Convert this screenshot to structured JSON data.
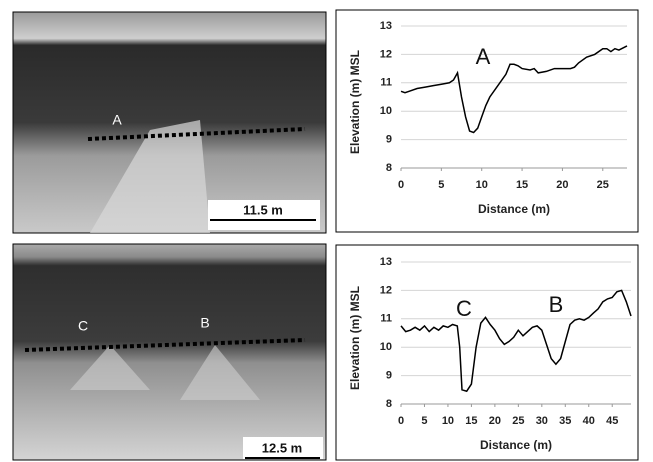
{
  "photos": [
    {
      "labels": [
        "A"
      ],
      "scale_bar": "11.5 m"
    },
    {
      "labels": [
        "C",
        "B"
      ],
      "scale_bar": "12.5 m"
    }
  ],
  "chart_data": [
    {
      "type": "line",
      "x_label": "Distance (m)",
      "y_label": "Elevation (m) MSL",
      "annotations": [
        "A"
      ],
      "color": "#000000",
      "grid": true,
      "x": [
        0,
        0.5,
        1,
        2,
        3,
        4,
        5,
        6,
        6.5,
        7,
        7.5,
        8,
        8.5,
        9,
        9.5,
        10,
        10.5,
        11,
        12,
        13,
        13.5,
        14,
        14.5,
        15,
        16,
        16.5,
        17,
        18,
        19,
        20,
        21,
        21.5,
        22,
        23,
        24,
        25,
        25.5,
        26,
        26.5,
        27,
        28
      ],
      "values": [
        10.7,
        10.65,
        10.7,
        10.8,
        10.85,
        10.9,
        10.95,
        11.0,
        11.1,
        11.35,
        10.5,
        9.8,
        9.3,
        9.25,
        9.4,
        9.8,
        10.2,
        10.5,
        10.9,
        11.3,
        11.65,
        11.65,
        11.6,
        11.5,
        11.45,
        11.5,
        11.35,
        11.4,
        11.5,
        11.5,
        11.5,
        11.55,
        11.7,
        11.9,
        12.0,
        12.2,
        12.2,
        12.1,
        12.2,
        12.15,
        12.3
      ],
      "xlim": [
        0,
        28
      ],
      "xticks": [
        0,
        5,
        10,
        15,
        20,
        25
      ],
      "ylim": [
        8,
        13
      ],
      "yticks": [
        8,
        9,
        10,
        11,
        12,
        13
      ]
    },
    {
      "type": "line",
      "x_label": "Distance (m)",
      "y_label": "Elevation (m) MSL",
      "annotations": [
        "C",
        "B"
      ],
      "color": "#000000",
      "grid": true,
      "x": [
        0,
        1,
        2,
        3,
        4,
        5,
        6,
        7,
        8,
        9,
        10,
        11,
        12,
        12.5,
        13,
        14,
        15,
        16,
        17,
        18,
        19,
        20,
        21,
        22,
        23,
        24,
        25,
        26,
        27,
        28,
        29,
        30,
        31,
        32,
        33,
        34,
        35,
        36,
        37,
        38,
        39,
        40,
        41,
        42,
        43,
        44,
        45,
        46,
        47,
        48,
        49
      ],
      "values": [
        10.75,
        10.55,
        10.6,
        10.7,
        10.6,
        10.75,
        10.55,
        10.7,
        10.6,
        10.75,
        10.7,
        10.8,
        10.75,
        10,
        8.5,
        8.45,
        8.7,
        10,
        10.85,
        11.05,
        10.8,
        10.6,
        10.3,
        10.1,
        10.2,
        10.35,
        10.6,
        10.4,
        10.55,
        10.7,
        10.75,
        10.6,
        10.1,
        9.6,
        9.4,
        9.6,
        10.2,
        10.8,
        10.95,
        11.0,
        10.95,
        11.05,
        11.2,
        11.35,
        11.6,
        11.7,
        11.75,
        11.95,
        12.0,
        11.6,
        11.1
      ],
      "xlim": [
        0,
        49
      ],
      "xticks": [
        0,
        5,
        10,
        15,
        20,
        25,
        30,
        35,
        40,
        45
      ],
      "ylim": [
        8,
        13
      ],
      "yticks": [
        8,
        9,
        10,
        11,
        12,
        13
      ]
    }
  ]
}
